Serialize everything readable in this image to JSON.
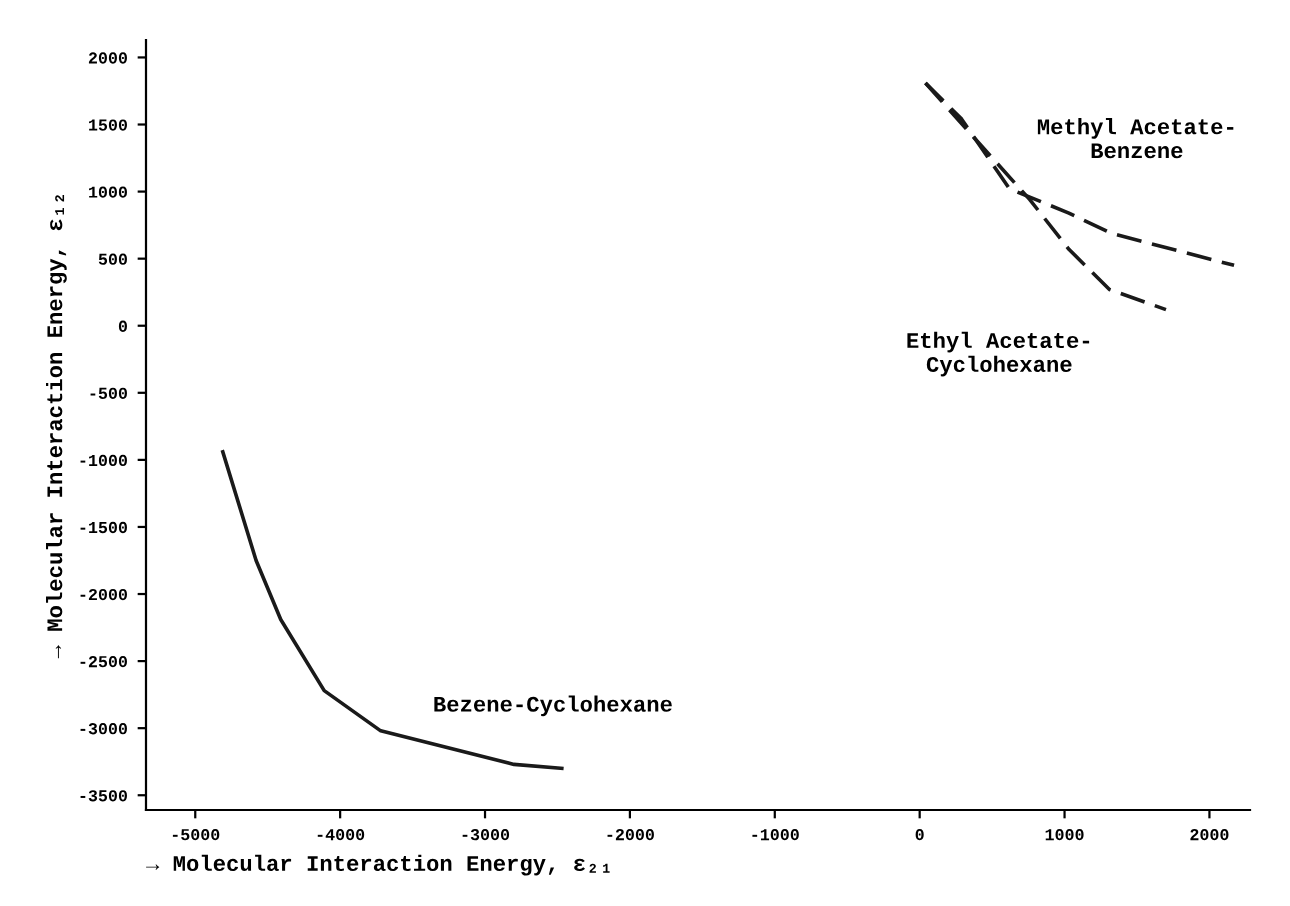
{
  "chart_data": {
    "type": "line",
    "xlabel": "→ Molecular Interaction Energy, ε₂₁",
    "ylabel": "→ Molecular Interaction Energy, ε₁₂",
    "xlim": [
      -5340,
      2280
    ],
    "ylim": [
      -3610,
      2130
    ],
    "xticks": [
      -5000,
      -4000,
      -3000,
      -2000,
      -1000,
      0,
      1000,
      2000
    ],
    "yticks": [
      -3500,
      -3000,
      -2500,
      -2000,
      -1500,
      -1000,
      -500,
      0,
      500,
      1000,
      1500,
      2000
    ],
    "grid": false,
    "legend": false,
    "marker": "none",
    "series": [
      {
        "name": "Bezene-Cyclohexane",
        "color": "#1a1a1a",
        "line_style": "solid",
        "x": [
          -4810,
          -4580,
          -4410,
          -4110,
          -3720,
          -2800,
          -2470
        ],
        "values": [
          -940,
          -1750,
          -2190,
          -2720,
          -3020,
          -3270,
          -3300
        ]
      },
      {
        "name": "Methyl Acetate-\nBenzene",
        "color": "#1a1a1a",
        "line_style": "dashed",
        "x": [
          40,
          290,
          620,
          1030,
          1320,
          2170
        ],
        "values": [
          1810,
          1540,
          1020,
          840,
          690,
          450
        ]
      },
      {
        "name": "Ethyl Acetate-\nCyclohexane",
        "color": "#1a1a1a",
        "line_style": "dashed",
        "x": [
          40,
          410,
          760,
          1030,
          1310,
          1700
        ],
        "values": [
          1810,
          1360,
          940,
          570,
          270,
          120
        ]
      }
    ]
  }
}
